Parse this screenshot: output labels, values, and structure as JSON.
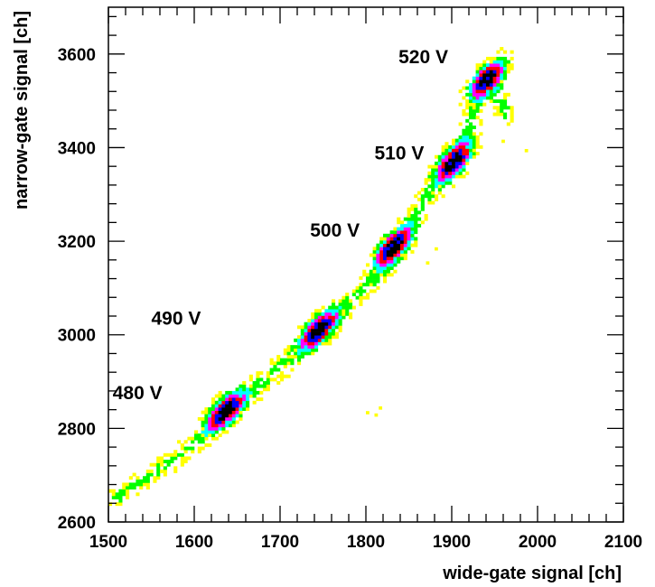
{
  "chart_data": {
    "type": "heatmap",
    "title": "",
    "xlabel": "wide-gate signal [ch]",
    "ylabel": "narrow-gate signal [ch]",
    "xlim": [
      1500,
      2100
    ],
    "ylim": [
      2600,
      3700
    ],
    "x_ticks": [
      1500,
      1600,
      1700,
      1800,
      1900,
      2000,
      2100
    ],
    "y_ticks": [
      2600,
      2800,
      3000,
      3200,
      3400,
      3600
    ],
    "x_tick_labels": [
      "1500",
      "1600",
      "1700",
      "1800",
      "1900",
      "2000",
      "2100"
    ],
    "y_tick_labels": [
      "2600",
      "2800",
      "3000",
      "3200",
      "3400",
      "3600"
    ],
    "grid": false,
    "color_scale": [
      "#ffff00",
      "#00ff00",
      "#00ffff",
      "#ff00ff",
      "#ff0000",
      "#0000ff",
      "#000000"
    ],
    "clusters": [
      {
        "label": "480 V",
        "x": 1637,
        "y": 2838,
        "label_x": 1505,
        "label_y": 2862
      },
      {
        "label": "490 V",
        "x": 1745,
        "y": 3010,
        "label_x": 1550,
        "label_y": 3022
      },
      {
        "label": "500 V",
        "x": 1832,
        "y": 3188,
        "label_x": 1735,
        "label_y": 3210
      },
      {
        "label": "510 V",
        "x": 1903,
        "y": 3372,
        "label_x": 1810,
        "label_y": 3375
      },
      {
        "label": "520 V",
        "x": 1942,
        "y": 3548,
        "label_x": 1838,
        "label_y": 3580
      }
    ],
    "features": {
      "track_points": [
        [
          1510,
          2650
        ],
        [
          1540,
          2690
        ],
        [
          1560,
          2715
        ],
        [
          1580,
          2740
        ],
        [
          1600,
          2770
        ],
        [
          1620,
          2800
        ],
        [
          1637,
          2838
        ],
        [
          1660,
          2870
        ],
        [
          1680,
          2900
        ],
        [
          1700,
          2930
        ],
        [
          1720,
          2960
        ],
        [
          1745,
          3010
        ],
        [
          1765,
          3045
        ],
        [
          1785,
          3075
        ],
        [
          1800,
          3100
        ],
        [
          1815,
          3130
        ],
        [
          1832,
          3188
        ],
        [
          1850,
          3230
        ],
        [
          1870,
          3290
        ],
        [
          1890,
          3340
        ],
        [
          1903,
          3372
        ],
        [
          1920,
          3440
        ],
        [
          1930,
          3500
        ],
        [
          1942,
          3548
        ],
        [
          1965,
          3470
        ]
      ],
      "stray": [
        [
          1815,
          2840
        ],
        [
          1810,
          2825
        ],
        [
          1800,
          2830
        ],
        [
          1880,
          3180
        ],
        [
          1985,
          3390
        ],
        [
          1958,
          3410
        ],
        [
          1870,
          3150
        ]
      ]
    }
  }
}
